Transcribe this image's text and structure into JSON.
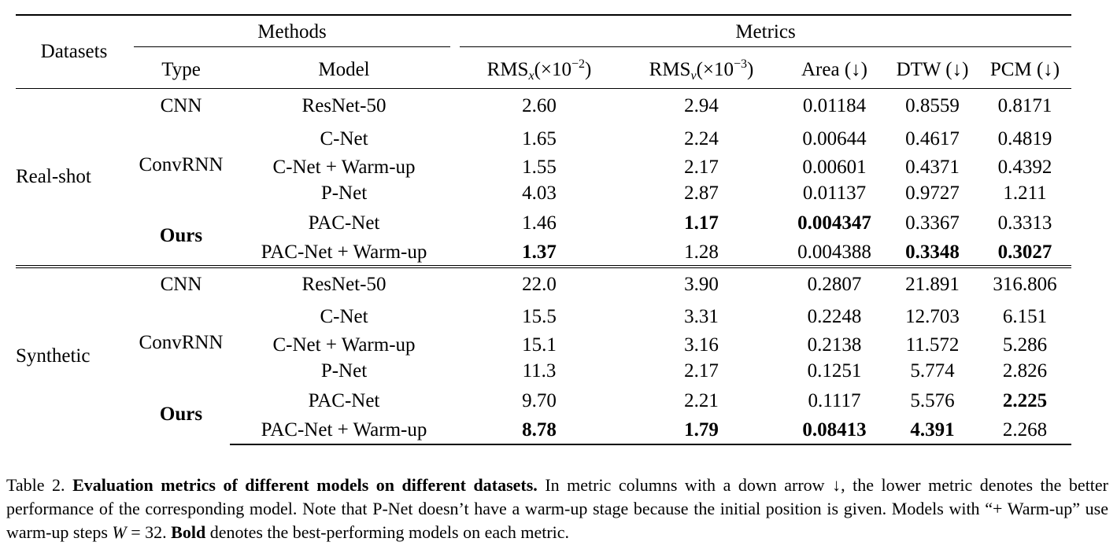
{
  "headers": {
    "datasets": "Datasets",
    "methods": "Methods",
    "metrics": "Metrics",
    "type": "Type",
    "model": "Model",
    "rmsx_base": "RMS",
    "rmsx_sub": "x",
    "rmsx_scale_a": "(×10",
    "rmsx_exp": "−2",
    "rmsx_scale_b": ")",
    "rmsv_base": "RMS",
    "rmsv_sub": "v",
    "rmsv_scale_a": "(×10",
    "rmsv_exp": "−3",
    "rmsv_scale_b": ")",
    "area": "Area (↓)",
    "dtw": "DTW (↓)",
    "pcm": "PCM (↓)"
  },
  "groups": [
    {
      "dataset": "Real-shot",
      "rows": [
        {
          "type": "CNN",
          "model": "ResNet-50",
          "rmsx": "2.60",
          "rmsv": "2.94",
          "area": "0.01184",
          "dtw": "0.8559",
          "pcm": "0.8171"
        },
        {
          "type": "ConvRNN",
          "model": "C-Net",
          "rmsx": "1.65",
          "rmsv": "2.24",
          "area": "0.00644",
          "dtw": "0.4617",
          "pcm": "0.4819"
        },
        {
          "type": "",
          "model": "C-Net + Warm-up",
          "rmsx": "1.55",
          "rmsv": "2.17",
          "area": "0.00601",
          "dtw": "0.4371",
          "pcm": "0.4392"
        },
        {
          "type": "",
          "model": "P-Net",
          "rmsx": "4.03",
          "rmsv": "2.87",
          "area": "0.01137",
          "dtw": "0.9727",
          "pcm": "1.211"
        },
        {
          "type": "Ours",
          "model": "PAC-Net",
          "rmsx": "1.46",
          "rmsv": "1.17",
          "area": "0.004347",
          "dtw": "0.3367",
          "pcm": "0.3313"
        },
        {
          "type": "",
          "model": "PAC-Net + Warm-up",
          "rmsx": "1.37",
          "rmsv": "1.28",
          "area": "0.004388",
          "dtw": "0.3348",
          "pcm": "0.3027"
        }
      ]
    },
    {
      "dataset": "Synthetic",
      "rows": [
        {
          "type": "CNN",
          "model": "ResNet-50",
          "rmsx": "22.0",
          "rmsv": "3.90",
          "area": "0.2807",
          "dtw": "21.891",
          "pcm": "316.806"
        },
        {
          "type": "ConvRNN",
          "model": "C-Net",
          "rmsx": "15.5",
          "rmsv": "3.31",
          "area": "0.2248",
          "dtw": "12.703",
          "pcm": "6.151"
        },
        {
          "type": "",
          "model": "C-Net + Warm-up",
          "rmsx": "15.1",
          "rmsv": "3.16",
          "area": "0.2138",
          "dtw": "11.572",
          "pcm": "5.286"
        },
        {
          "type": "",
          "model": "P-Net",
          "rmsx": "11.3",
          "rmsv": "2.17",
          "area": "0.1251",
          "dtw": "5.774",
          "pcm": "2.826"
        },
        {
          "type": "Ours",
          "model": "PAC-Net",
          "rmsx": "9.70",
          "rmsv": "2.21",
          "area": "0.1117",
          "dtw": "5.576",
          "pcm": "2.225"
        },
        {
          "type": "",
          "model": "PAC-Net + Warm-up",
          "rmsx": "8.78",
          "rmsv": "1.79",
          "area": "0.08413",
          "dtw": "4.391",
          "pcm": "2.268"
        }
      ]
    }
  ],
  "caption": {
    "label": "Table 2.",
    "title": "Evaluation metrics of different models on different datasets.",
    "text1": " In metric columns with a down arrow ↓, the lower metric denotes the better performance of the corresponding model. Note that P-Net doesn’t have a warm-up stage because the initial position is given. Models with “+ Warm-up” use warm-up steps ",
    "var": "W",
    "eq": " = 32. ",
    "bold_word": "Bold",
    "text2": " denotes the best-performing models on each metric."
  }
}
